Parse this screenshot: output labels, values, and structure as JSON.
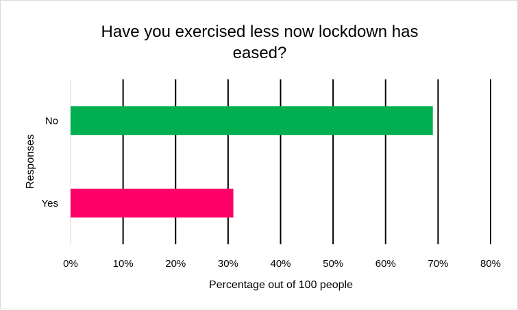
{
  "chart_data": {
    "type": "bar",
    "orientation": "horizontal",
    "title": "Have you exercised less now lockdown has eased?",
    "title_lines": [
      "Have you exercised less now lockdown has",
      "eased?"
    ],
    "xlabel": "Percentage out of 100 people",
    "ylabel": "Responses",
    "categories": [
      "No",
      "Yes"
    ],
    "values": [
      69,
      31
    ],
    "colors": [
      "#00b050",
      "#ff0066"
    ],
    "xlim": [
      0,
      80
    ],
    "xticks": [
      "0%",
      "10%",
      "20%",
      "30%",
      "40%",
      "50%",
      "60%",
      "70%",
      "80%"
    ],
    "grid": true,
    "gridline_color": "#000000",
    "legend": false
  }
}
